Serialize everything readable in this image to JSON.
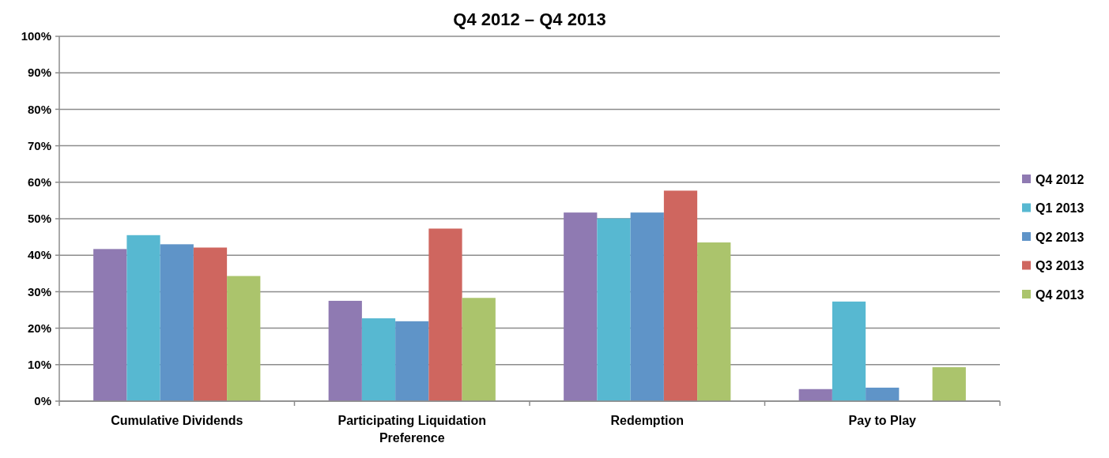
{
  "chart_data": {
    "type": "bar",
    "title": "Q4 2012 – Q4 2013",
    "categories": [
      "Cumulative Dividends",
      "Participating Liquidation Preference",
      "Redemption",
      "Pay to Play"
    ],
    "series": [
      {
        "name": "Q4 2012",
        "color": "#8f7ab2",
        "values": [
          41.7,
          27.5,
          51.7,
          3.3
        ]
      },
      {
        "name": "Q1 2013",
        "color": "#57b8d1",
        "values": [
          45.5,
          22.7,
          50.1,
          27.3
        ]
      },
      {
        "name": "Q2 2013",
        "color": "#5f94c8",
        "values": [
          43.0,
          21.9,
          51.7,
          3.7
        ]
      },
      {
        "name": "Q3 2013",
        "color": "#cf665f",
        "values": [
          42.1,
          47.3,
          57.7,
          null
        ]
      },
      {
        "name": "Q4 2013",
        "color": "#abc46c",
        "values": [
          34.3,
          28.3,
          43.5,
          9.3
        ]
      }
    ],
    "ylim": [
      0,
      100
    ],
    "yticks": [
      {
        "value": 0,
        "label": "0%"
      },
      {
        "value": 10,
        "label": "10%"
      },
      {
        "value": 20,
        "label": "20%"
      },
      {
        "value": 30,
        "label": "30%"
      },
      {
        "value": 40,
        "label": "40%"
      },
      {
        "value": 50,
        "label": "50%"
      },
      {
        "value": 60,
        "label": "60%"
      },
      {
        "value": 70,
        "label": "70%"
      },
      {
        "value": 80,
        "label": "80%"
      },
      {
        "value": 90,
        "label": "90%"
      },
      {
        "value": 100,
        "label": "100%"
      }
    ],
    "grid": "y",
    "legend": "right"
  }
}
